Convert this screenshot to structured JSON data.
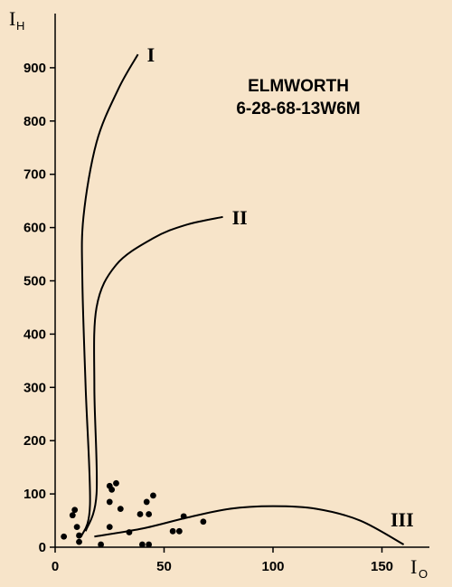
{
  "chart_data": {
    "type": "scatter",
    "title": "ELMWORTH",
    "subtitle": "6-28-68-13W6M",
    "ylabel": "I",
    "ylabel_sub": "H",
    "xlabel": "I",
    "xlabel_sub": "O",
    "xlim": [
      0,
      175
    ],
    "ylim": [
      0,
      1000
    ],
    "x_ticks": [
      0,
      50,
      100,
      150
    ],
    "y_ticks": [
      0,
      100,
      200,
      300,
      400,
      500,
      600,
      700,
      800,
      900
    ],
    "grid": false,
    "series": [
      {
        "points": [
          [
            4,
            20
          ],
          [
            8,
            60
          ],
          [
            9,
            70
          ],
          [
            10,
            38
          ],
          [
            11,
            22
          ],
          [
            11,
            10
          ],
          [
            21,
            5
          ],
          [
            25,
            85
          ],
          [
            25,
            115
          ],
          [
            25,
            38
          ],
          [
            26,
            108
          ],
          [
            28,
            120
          ],
          [
            30,
            72
          ],
          [
            34,
            28
          ],
          [
            39,
            62
          ],
          [
            40,
            5
          ],
          [
            42,
            85
          ],
          [
            43,
            62
          ],
          [
            43,
            5
          ],
          [
            45,
            97
          ],
          [
            54,
            30
          ],
          [
            57,
            30
          ],
          [
            59,
            58
          ],
          [
            68,
            48
          ]
        ]
      }
    ],
    "curves": [
      {
        "label": "I",
        "points": [
          [
            12,
            20
          ],
          [
            16,
            80
          ],
          [
            14,
            300
          ],
          [
            12.5,
            500
          ],
          [
            13,
            620
          ],
          [
            19,
            760
          ],
          [
            29,
            860
          ],
          [
            38,
            925
          ]
        ]
      },
      {
        "label": "II",
        "points": [
          [
            14,
            30
          ],
          [
            19,
            100
          ],
          [
            18,
            300
          ],
          [
            19,
            450
          ],
          [
            28,
            530
          ],
          [
            45,
            580
          ],
          [
            60,
            605
          ],
          [
            77,
            620
          ]
        ]
      },
      {
        "label": "III",
        "points": [
          [
            18,
            20
          ],
          [
            40,
            35
          ],
          [
            60,
            55
          ],
          [
            80,
            72
          ],
          [
            100,
            77
          ],
          [
            120,
            72
          ],
          [
            140,
            50
          ],
          [
            160,
            5
          ]
        ]
      }
    ],
    "colors": {
      "background": "#f7e4c9",
      "ink": "#000000"
    }
  }
}
